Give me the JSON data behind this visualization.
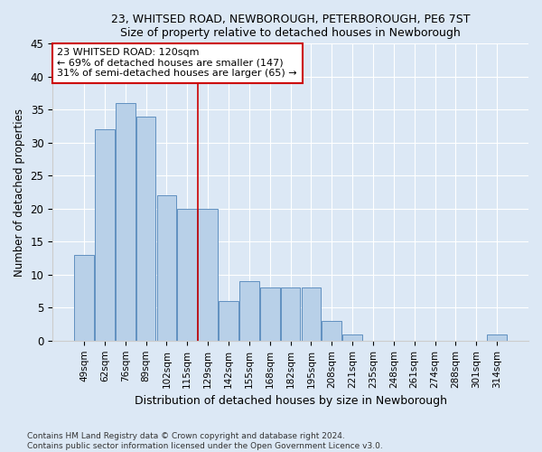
{
  "title1": "23, WHITSED ROAD, NEWBOROUGH, PETERBOROUGH, PE6 7ST",
  "title2": "Size of property relative to detached houses in Newborough",
  "xlabel": "Distribution of detached houses by size in Newborough",
  "ylabel": "Number of detached properties",
  "categories": [
    "49sqm",
    "62sqm",
    "76sqm",
    "89sqm",
    "102sqm",
    "115sqm",
    "129sqm",
    "142sqm",
    "155sqm",
    "168sqm",
    "182sqm",
    "195sqm",
    "208sqm",
    "221sqm",
    "235sqm",
    "248sqm",
    "261sqm",
    "274sqm",
    "288sqm",
    "301sqm",
    "314sqm"
  ],
  "values": [
    13,
    32,
    36,
    34,
    22,
    20,
    20,
    6,
    9,
    8,
    8,
    8,
    3,
    1,
    0,
    0,
    0,
    0,
    0,
    0,
    1
  ],
  "bar_color": "#b8d0e8",
  "bar_edge_color": "#6090c0",
  "background_color": "#dce8f5",
  "red_line_x": 5.5,
  "annotation_line1": "23 WHITSED ROAD: 120sqm",
  "annotation_line2": "← 69% of detached houses are smaller (147)",
  "annotation_line3": "31% of semi-detached houses are larger (65) →",
  "annotation_box_color": "#ffffff",
  "annotation_box_edge": "#cc0000",
  "footer1": "Contains HM Land Registry data © Crown copyright and database right 2024.",
  "footer2": "Contains public sector information licensed under the Open Government Licence v3.0.",
  "ylim": [
    0,
    45
  ],
  "yticks": [
    0,
    5,
    10,
    15,
    20,
    25,
    30,
    35,
    40,
    45
  ]
}
